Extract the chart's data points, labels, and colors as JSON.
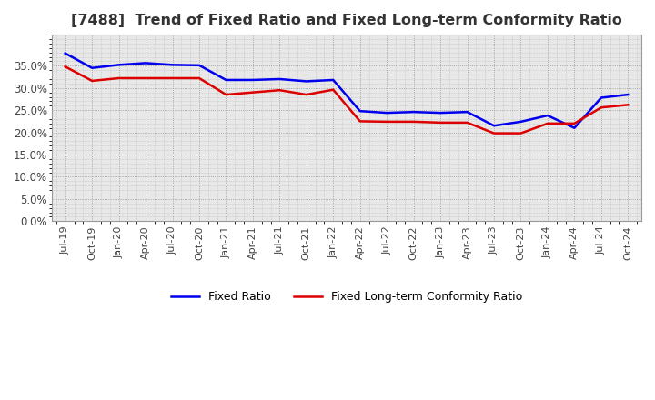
{
  "title": "[7488]  Trend of Fixed Ratio and Fixed Long-term Conformity Ratio",
  "title_fontsize": 11.5,
  "ylim": [
    0.0,
    0.42
  ],
  "yticks": [
    0.0,
    0.05,
    0.1,
    0.15,
    0.2,
    0.25,
    0.3,
    0.35
  ],
  "background_color": "#ffffff",
  "plot_bg_color": "#e8e8e8",
  "grid_color": "#888888",
  "legend_labels": [
    "Fixed Ratio",
    "Fixed Long-term Conformity Ratio"
  ],
  "line_colors": [
    "#0000ee",
    "#dd0000"
  ],
  "x_labels": [
    "Jul-19",
    "Oct-19",
    "Jan-20",
    "Apr-20",
    "Jul-20",
    "Oct-20",
    "Jan-21",
    "Apr-21",
    "Jul-21",
    "Oct-21",
    "Jan-22",
    "Apr-22",
    "Jul-22",
    "Oct-22",
    "Jan-23",
    "Apr-23",
    "Jul-23",
    "Oct-23",
    "Jan-24",
    "Apr-24",
    "Jul-24",
    "Oct-24"
  ],
  "fixed_ratio": [
    0.378,
    0.345,
    0.352,
    0.356,
    0.352,
    0.351,
    0.318,
    0.318,
    0.32,
    0.315,
    0.318,
    0.248,
    0.244,
    0.246,
    0.244,
    0.246,
    0.215,
    0.224,
    0.238,
    0.21,
    0.278,
    0.285
  ],
  "fixed_lt_ratio": [
    0.348,
    0.316,
    0.322,
    0.322,
    0.322,
    0.322,
    0.285,
    0.29,
    0.295,
    0.285,
    0.296,
    0.225,
    0.224,
    0.224,
    0.222,
    0.222,
    0.198,
    0.198,
    0.22,
    0.22,
    0.256,
    0.262
  ]
}
